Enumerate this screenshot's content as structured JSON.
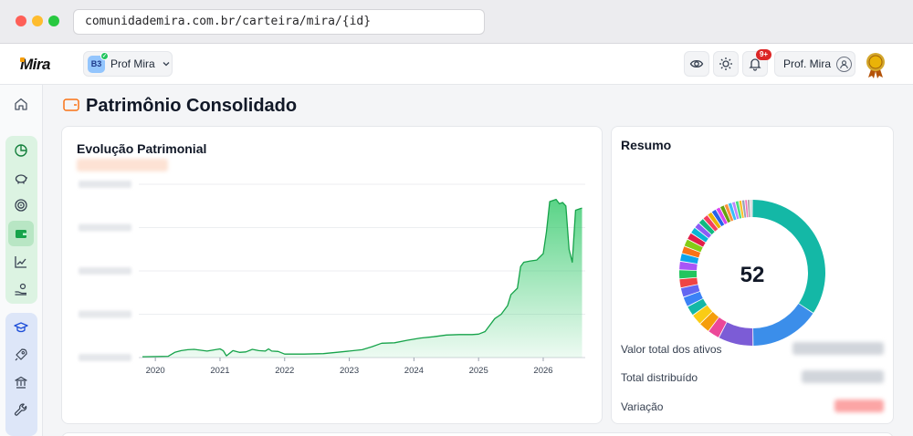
{
  "browser": {
    "url": "comunidademira.com.br/carteira/mira/{id}"
  },
  "header": {
    "logo": "Mira",
    "profile": {
      "badge": "B3",
      "name": "Prof Mira"
    },
    "notifications_count": "9+",
    "user_name": "Prof. Mira",
    "icons": [
      "eye-icon",
      "sun-icon",
      "bell-icon",
      "user-icon",
      "medal-icon"
    ]
  },
  "sidebar": {
    "icons": [
      "home-icon",
      "finance-icon",
      "piggy-bank-icon",
      "target-icon",
      "wallet-icon",
      "chart-line-icon",
      "hand-coins-icon",
      "graduation-cap-icon",
      "rocket-icon",
      "bank-icon",
      "wrench-icon"
    ],
    "active": "wallet-icon"
  },
  "page": {
    "title": "Patrimônio Consolidado"
  },
  "evolution": {
    "title": "Evolução Patrimonial"
  },
  "chart_data": {
    "type": "area",
    "title": "Evolução Patrimonial",
    "x_ticks": [
      "2020",
      "2021",
      "2022",
      "2023",
      "2024",
      "2025",
      "2026"
    ],
    "x": [
      2019.8,
      2020.2,
      2020.3,
      2020.4,
      2020.5,
      2020.6,
      2020.8,
      2021.0,
      2021.05,
      2021.1,
      2021.2,
      2021.3,
      2021.4,
      2021.5,
      2021.6,
      2021.7,
      2021.75,
      2021.8,
      2021.9,
      2022.0,
      2022.3,
      2022.6,
      2022.8,
      2023.0,
      2023.2,
      2023.35,
      2023.5,
      2023.7,
      2023.9,
      2024.1,
      2024.3,
      2024.5,
      2024.7,
      2024.9,
      2025.0,
      2025.1,
      2025.25,
      2025.35,
      2025.45,
      2025.5,
      2025.6,
      2025.65,
      2025.7,
      2025.8,
      2025.9,
      2026.0,
      2026.05,
      2026.1,
      2026.2,
      2026.25,
      2026.3,
      2026.35,
      2026.4,
      2026.45,
      2026.5,
      2026.6
    ],
    "y": [
      0.2,
      0.3,
      1.2,
      1.6,
      1.8,
      1.9,
      1.5,
      2.0,
      1.6,
      0.4,
      1.6,
      1.2,
      1.3,
      1.9,
      1.6,
      1.5,
      2.0,
      1.5,
      1.4,
      0.8,
      0.8,
      0.9,
      1.2,
      1.5,
      1.8,
      2.5,
      3.3,
      3.4,
      4.0,
      4.5,
      4.8,
      5.2,
      5.3,
      5.3,
      5.4,
      6.0,
      9.0,
      10.0,
      12.0,
      14.5,
      16.0,
      21.0,
      22.0,
      22.3,
      22.5,
      24.0,
      29.0,
      36.0,
      36.5,
      35.5,
      35.8,
      35.0,
      25.0,
      22.0,
      34.0,
      34.5
    ],
    "ylim": [
      0,
      40
    ],
    "y_gridlines": 5,
    "y_labels_hidden": true,
    "color": "#22c55e"
  },
  "resumo": {
    "title": "Resumo",
    "count": "52",
    "rows": [
      {
        "label": "Valor total dos ativos"
      },
      {
        "label": "Total distribuído"
      },
      {
        "label": "Variação"
      }
    ]
  },
  "donut_data": {
    "type": "pie",
    "segments": [
      {
        "value": 31,
        "color": "#14b8a6"
      },
      {
        "value": 14,
        "color": "#3b8eea"
      },
      {
        "value": 7,
        "color": "#7c5cd6"
      },
      {
        "value": 2.4,
        "color": "#ec4899"
      },
      {
        "value": 2.2,
        "color": "#f59e0b"
      },
      {
        "value": 2.2,
        "color": "#facc15"
      },
      {
        "value": 2.0,
        "color": "#14b8a6"
      },
      {
        "value": 2.0,
        "color": "#3b82f6"
      },
      {
        "value": 1.9,
        "color": "#6366f1"
      },
      {
        "value": 1.8,
        "color": "#ef4444"
      },
      {
        "value": 1.8,
        "color": "#22c55e"
      },
      {
        "value": 1.7,
        "color": "#a855f7"
      },
      {
        "value": 1.6,
        "color": "#0ea5e9"
      },
      {
        "value": 1.5,
        "color": "#f97316"
      },
      {
        "value": 1.5,
        "color": "#84cc16"
      },
      {
        "value": 1.4,
        "color": "#e11d48"
      },
      {
        "value": 1.3,
        "color": "#06b6d4"
      },
      {
        "value": 1.2,
        "color": "#8b5cf6"
      },
      {
        "value": 1.2,
        "color": "#10b981"
      },
      {
        "value": 1.1,
        "color": "#f43f5e"
      },
      {
        "value": 1.0,
        "color": "#eab308"
      },
      {
        "value": 1.0,
        "color": "#2563eb"
      },
      {
        "value": 0.9,
        "color": "#d946ef"
      },
      {
        "value": 0.9,
        "color": "#65a30d"
      },
      {
        "value": 0.8,
        "color": "#fb923c"
      },
      {
        "value": 0.8,
        "color": "#38bdf8"
      },
      {
        "value": 0.7,
        "color": "#c084fc"
      },
      {
        "value": 0.7,
        "color": "#4ade80"
      },
      {
        "value": 0.6,
        "color": "#fbbf24"
      },
      {
        "value": 0.6,
        "color": "#94a3b8"
      },
      {
        "value": 0.5,
        "color": "#f472b6"
      },
      {
        "value": 0.5,
        "color": "#a3a3a3"
      },
      {
        "value": 0.5,
        "color": "#d4d4d8"
      }
    ]
  }
}
